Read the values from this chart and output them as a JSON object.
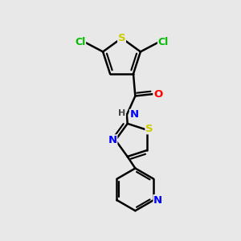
{
  "background_color": "#e8e8e8",
  "bond_color": "#000000",
  "bond_width": 1.8,
  "atom_colors": {
    "S": "#cccc00",
    "Cl": "#00bb00",
    "O": "#ff0000",
    "N": "#0000ff",
    "C": "#000000",
    "H": "#444444"
  },
  "figsize": [
    3.0,
    3.0
  ],
  "dpi": 100
}
